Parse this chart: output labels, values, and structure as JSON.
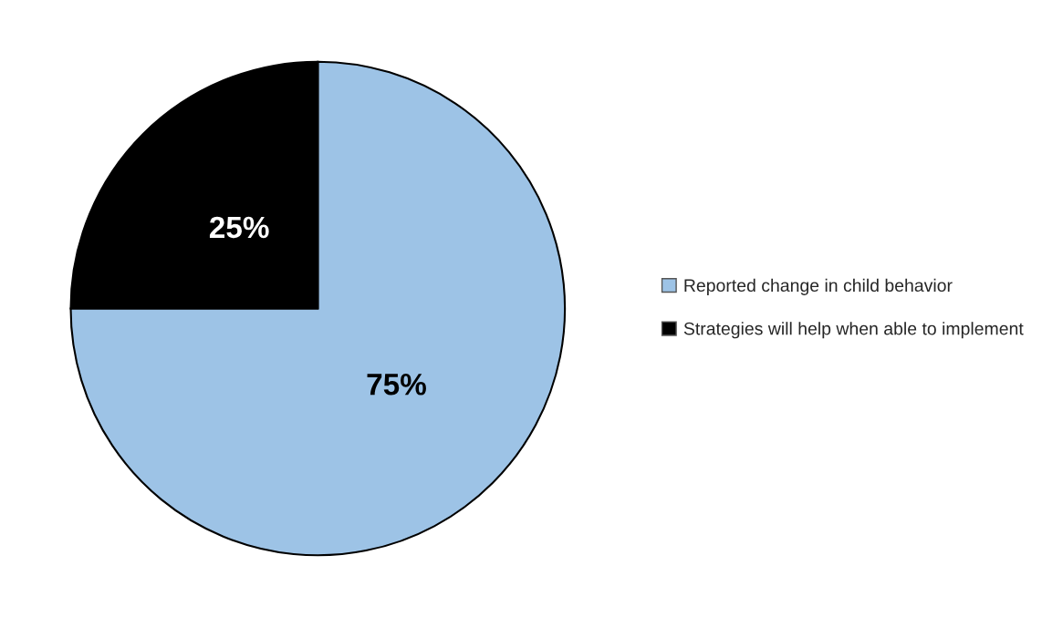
{
  "chart_data": {
    "type": "pie",
    "categories": [
      "Reported change in child behavior",
      "Strategies will help when able to implement"
    ],
    "values": [
      75,
      25
    ],
    "colors": [
      "#9dc3e6",
      "#000000"
    ],
    "value_labels": [
      "75%",
      "25%"
    ],
    "legend": "right"
  }
}
